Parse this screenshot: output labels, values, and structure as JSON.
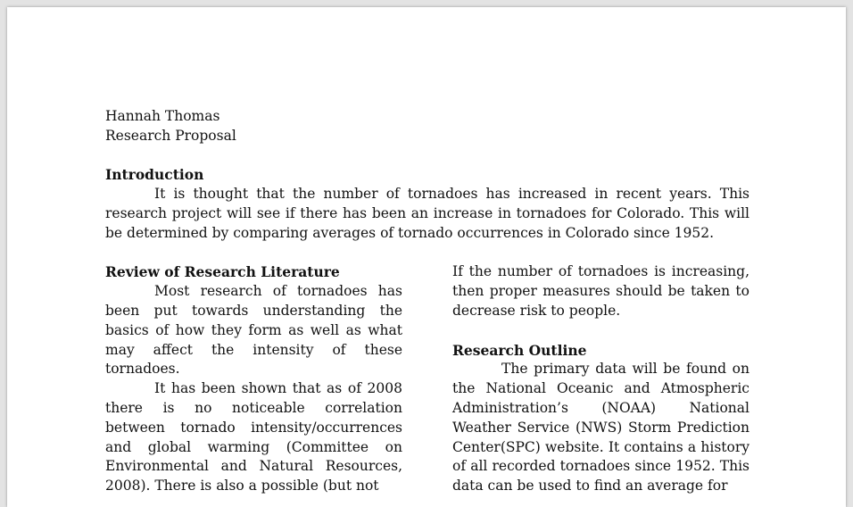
{
  "header": {
    "author": "Hannah Thomas",
    "doc_type": "Research Proposal"
  },
  "introduction": {
    "heading": "Introduction",
    "body": "It is thought that the number of tornadoes has increased in recent years. This research project will see if there has been an increase in tornadoes for Colorado. This will be determined by comparing averages of tornado occurrences in Colorado since 1952."
  },
  "review": {
    "heading": "Review of Research Literature",
    "p1": "Most research of tornadoes has been put towards understanding the basics of how they form as well as what may affect the intensity of these tornadoes.",
    "p2": "It has been shown that as of 2008 there is no noticeable correlation between tornado intensity/occurrences and global warming (Committee on Environmental and Natural Resources, 2008). There is also a possible (but not"
  },
  "right_column": {
    "continuation": "If the number of tornadoes is increasing, then proper measures should be taken to decrease risk to people."
  },
  "outline": {
    "heading": "Research Outline",
    "body": "The primary data will be found on the National Oceanic and Atmospheric Administration’s (NOAA) National Weather Service (NWS) Storm Prediction Center(SPC) website. It contains a history of all recorded tornadoes since 1952. This data can be used to find an average for"
  }
}
